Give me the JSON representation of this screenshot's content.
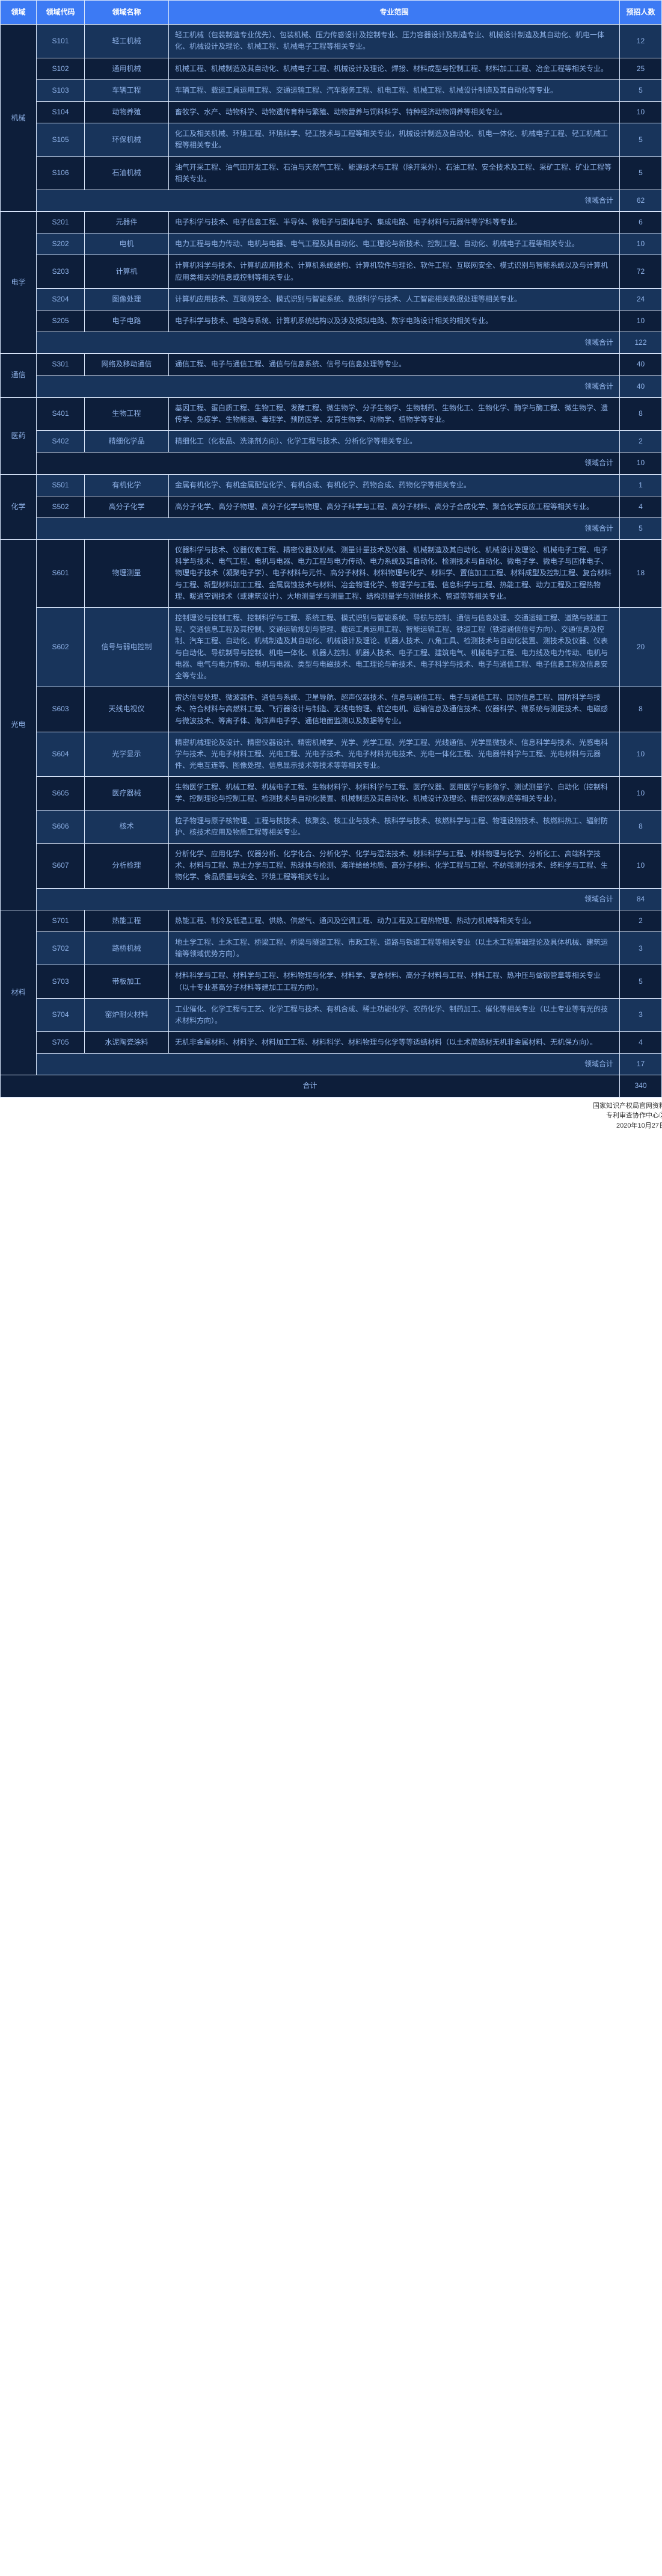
{
  "header": {
    "domain": "领域",
    "code": "领域代码",
    "name": "领域名称",
    "majors": "专业范围",
    "count": "预招人数"
  },
  "domains": [
    {
      "name": "机械",
      "rows": [
        {
          "code": "S101",
          "name": "轻工机械",
          "majors": "轻工机械（包装制造专业优先）、包装机械、压力传感设计及控制专业、压力容器设计及制造专业、机械设计制造及其自动化、机电一体化、机械设计及理论、机械工程、机械电子工程等相关专业。",
          "count": "12"
        },
        {
          "code": "S102",
          "name": "通用机械",
          "majors": "机械工程、机械制造及其自动化、机械电子工程、机械设计及理论、焊接、材料成型与控制工程、材料加工工程、冶金工程等相关专业。",
          "count": "25"
        },
        {
          "code": "S103",
          "name": "车辆工程",
          "majors": "车辆工程、载运工具运用工程、交通运输工程、汽车服务工程、机电工程、机械工程、机械设计制造及其自动化等专业。",
          "count": "5"
        },
        {
          "code": "S104",
          "name": "动物养殖",
          "majors": "畜牧学、水产、动物科学、动物遗传育种与繁殖、动物营养与饲料科学、特种经济动物饲养等相关专业。",
          "count": "10"
        },
        {
          "code": "S105",
          "name": "环保机械",
          "majors": "化工及相关机械、环境工程、环境科学、轻工技术与工程等相关专业，机械设计制造及自动化、机电一体化、机械电子工程、轻工机械工程等相关专业。",
          "count": "5"
        },
        {
          "code": "S106",
          "name": "石油机械",
          "majors": "油气开采工程、油气田开发工程、石油与天然气工程、能源技术与工程（除开采外）、石油工程、安全技术及工程、采矿工程、矿业工程等相关专业。",
          "count": "5"
        }
      ],
      "subtotal": {
        "label": "领域合计",
        "count": "62"
      }
    },
    {
      "name": "电学",
      "rows": [
        {
          "code": "S201",
          "name": "元器件",
          "majors": "电子科学与技术、电子信息工程、半导体、微电子与固体电子、集成电路、电子材料与元器件等学科等专业。",
          "count": "6"
        },
        {
          "code": "S202",
          "name": "电机",
          "majors": "电力工程与电力传动、电机与电器、电气工程及其自动化、电工理论与新技术、控制工程、自动化、机械电子工程等相关专业。",
          "count": "10"
        },
        {
          "code": "S203",
          "name": "计算机",
          "majors": "计算机科学与技术、计算机应用技术、计算机系统结构、计算机软件与理论、软件工程、互联网安全、模式识别与智能系统以及与计算机应用类相关的信息或控制等相关专业。",
          "count": "72"
        },
        {
          "code": "S204",
          "name": "图像处理",
          "majors": "计算机应用技术、互联网安全、模式识别与智能系统、数据科学与技术、人工智能相关数据处理等相关专业。",
          "count": "24"
        },
        {
          "code": "S205",
          "name": "电子电路",
          "majors": "电子科学与技术、电路与系统、计算机系统结构以及涉及模拟电路、数字电路设计相关的相关专业。",
          "count": "10"
        }
      ],
      "subtotal": {
        "label": "领域合计",
        "count": "122"
      }
    },
    {
      "name": "通信",
      "rows": [
        {
          "code": "S301",
          "name": "网络及移动通信",
          "majors": "通信工程、电子与通信工程、通信与信息系统、信号与信息处理等专业。",
          "count": "40"
        }
      ],
      "subtotal": {
        "label": "领域合计",
        "count": "40"
      }
    },
    {
      "name": "医药",
      "rows": [
        {
          "code": "S401",
          "name": "生物工程",
          "majors": "基因工程、蛋白质工程、生物工程、发酵工程、微生物学、分子生物学、生物制药、生物化工、生物化学、酶学与酶工程、微生物学、遗传学、免疫学、生物能源、毒理学、预防医学、发育生物学、动物学、植物学等专业。",
          "count": "8"
        },
        {
          "code": "S402",
          "name": "精细化学品",
          "majors": "精细化工（化妆品、洗涤剂方向）、化学工程与技术、分析化学等相关专业。",
          "count": "2"
        }
      ],
      "subtotal": {
        "label": "领域合计",
        "count": "10"
      }
    },
    {
      "name": "化学",
      "rows": [
        {
          "code": "S501",
          "name": "有机化学",
          "majors": "金属有机化学、有机金属配位化学、有机合成、有机化学、药物合成、药物化学等相关专业。",
          "count": "1"
        },
        {
          "code": "S502",
          "name": "高分子化学",
          "majors": "高分子化学、高分子物理、高分子化学与物理、高分子科学与工程、高分子材料、高分子合成化学、聚合化学反应工程等相关专业。",
          "count": "4"
        }
      ],
      "subtotal": {
        "label": "领域合计",
        "count": "5"
      }
    },
    {
      "name": "光电",
      "rows": [
        {
          "code": "S601",
          "name": "物理测量",
          "majors": "仪器科学与技术、仪器仪表工程、精密仪器及机械、测量计量技术及仪器、机械制造及其自动化、机械设计及理论、机械电子工程、电子科学与技术、电气工程、电机与电器、电力工程与电力传动、电力系统及其自动化、检测技术与自动化、微电子学、微电子与固体电子、物理电子技术（凝聚电子学）、电子材料与元件、高分子材料、材料物理与化学、材料学、置信加工工程、材料成型及控制工程、复合材料与工程、新型材料加工工程、金属腐蚀技术与材料、冶金物理化学、物理学与工程、信息科学与工程、热能工程、动力工程及工程热物理、暖通空调技术（或建筑设计）、大地测量学与测量工程、结构测量学与测绘技术、管道等等相关专业。",
          "count": "18"
        },
        {
          "code": "S602",
          "name": "信号与弱电控制",
          "majors": "控制理论与控制工程、控制科学与工程、系统工程、模式识别与智能系统、导航与控制、通信与信息处理、交通运输工程、道路与铁道工程、交通信息工程及其控制、交通运输规划与管理、载运工具运用工程、智能运输工程、铁道工程（铁道通信信号方向）、交通信息及控制、汽车工程、自动化、机械制造及其自动化、机械设计及理论、机器人技术、八角工具、检测技术与自动化装置、测技术及仪器、仪表与自动化、导航制导与控制、机电一体化、机器人控制、机器人技术、电子工程、建筑电气、机械电子工程、电力线及电力传动、电机与电器、电气与电力传动、电机与电器、类型与电磁技术、电工理论与新技术、电子科学与技术、电子与通信工程、电子信息工程及信息安全等专业。",
          "count": "20"
        },
        {
          "code": "S603",
          "name": "天线电视仪",
          "majors": "雷达信号处理、微波器件、通信与系统、卫星导航、超声仪器技术、信息与通信工程、电子与通信工程、国防信息工程、国防科学与技术、符合材料与高燃料工程、飞行器设计与制造、无线电物理、航空电机、运输信息及通信技术、仪器科学、微系统与测距技术、电磁感与微波技术、等离子体、海洋声电子学、通信地面监测以及数据等专业。",
          "count": "8"
        },
        {
          "code": "S604",
          "name": "光学显示",
          "majors": "精密机械理论及设计、精密仪器设计、精密机械学、光学、光学工程、光学工程、光线通信、光学显微技术、信息科学与技术、光感电科学与技术、光电子材料工程、光电工程、光电子技术、光电子材料光电技术、光电一体化工程、光电器件科学与工程、光电材料与元器件、光电互连等、图像处理、信息显示技术等技术等等相关专业。",
          "count": "10"
        },
        {
          "code": "S605",
          "name": "医疗器械",
          "majors": "生物医学工程、机械工程、机械电子工程、生物材料学、材料科学与工程、医疗仪器、医用医学与影像学、测试测量学、自动化（控制科学、控制理论与控制工程、检测技术与自动化装置、机械制造及其自动化、机械设计及理论、精密仪器制造等相关专业）。",
          "count": "10"
        },
        {
          "code": "S606",
          "name": "核术",
          "majors": "粒子物理与原子核物理、工程与核技术、核聚变、核工业与技术、核科学与技术、核燃料学与工程、物理设施技术、核燃料热工、辐射防护、核技术应用及物质工程等相关专业。",
          "count": "8"
        },
        {
          "code": "S607",
          "name": "分析检理",
          "majors": "分析化学、应用化学、仪器分析、化学化合、分析化学、化学与湿法技术、材料科学与工程、材料物理与化学、分析化工、高端科学技术、材料与工程、热土力学与工程、热球体与检测、海洋给给地质、高分子材料、化学工程与工程、不纺强测分技术、终料学与工程、生物化学、食品质量与安全、环境工程等相关专业。",
          "count": "10"
        }
      ],
      "subtotal": {
        "label": "领域合计",
        "count": "84"
      }
    },
    {
      "name": "材料",
      "rows": [
        {
          "code": "S701",
          "name": "热能工程",
          "majors": "热能工程、制冷及低温工程、供热、供燃气、通风及空调工程、动力工程及工程热物理、热动力机械等相关专业。",
          "count": "2"
        },
        {
          "code": "S702",
          "name": "路桥机械",
          "majors": "地土学工程、土木工程、桥梁工程、桥梁与隧道工程、市政工程、道路与铁道工程等相关专业（以土木工程基础理论及具体机械、建筑运输等领域优势方向）。",
          "count": "3"
        },
        {
          "code": "S703",
          "name": "带板加工",
          "majors": "材料科学与工程、材料学与工程、材料物理与化学、材料学、复合材料、高分子材料与工程、材料工程、热冲压与做锻管章等相关专业（以十专业基高分子材料等建加工工程方向）。",
          "count": "5"
        },
        {
          "code": "S704",
          "name": "窑炉耐火材料",
          "majors": "工业催化、化学工程与工艺、化学工程与技术、有机合成、稀土功能化学、农药化学、制药加工、催化等相关专业（以土专业等有光的技术材料方向）。",
          "count": "3"
        },
        {
          "code": "S705",
          "name": "水泥陶瓷涂料",
          "majors": "无机非金属材料、材料学、材料加工工程、材料科学、材料物理与化学等等适结材料（以土术简结材无机非金属材料、无机保方向）。",
          "count": "4"
        }
      ],
      "subtotal": {
        "label": "领域合计",
        "count": "17"
      }
    }
  ],
  "grandTotal": {
    "label": "合计",
    "count": "340"
  },
  "footer": {
    "line1": "国家知识产权局官网资料",
    "line2": "专利审查协作中心②",
    "line3": "2020年10月27日"
  },
  "style": {
    "header_bg": "#3c7af4",
    "header_fg": "#ffffff",
    "row_odd_bg": "#18345b",
    "row_even_bg": "#0d1e3a",
    "row_fg": "#8fb2e8",
    "border": "#d9e6fb"
  }
}
